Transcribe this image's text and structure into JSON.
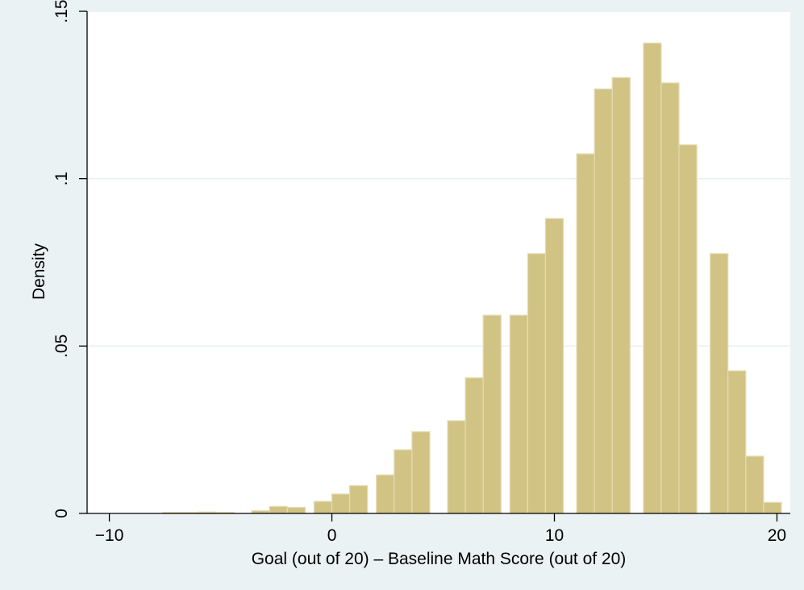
{
  "chart_data": {
    "type": "bar",
    "xlabel": "Goal (out of 20) – Baseline Math Score (out of 20)",
    "ylabel": "Density",
    "xlim": [
      -11,
      20.6
    ],
    "ylim": [
      0,
      0.15
    ],
    "x_ticks": [
      {
        "value": -10,
        "label": "−10"
      },
      {
        "value": 0,
        "label": "0"
      },
      {
        "value": 10,
        "label": "10"
      },
      {
        "value": 20,
        "label": "20"
      }
    ],
    "y_ticks": [
      {
        "value": 0,
        "label": "0"
      },
      {
        "value": 0.05,
        "label": ".05"
      },
      {
        "value": 0.1,
        "label": ".1"
      },
      {
        "value": 0.15,
        "label": ".15"
      }
    ],
    "grid": true,
    "bin_width": 0.8,
    "bars": [
      {
        "x": -7.6,
        "value": 0.0003
      },
      {
        "x": -6.8,
        "value": 0.0003
      },
      {
        "x": -6.0,
        "value": 0.0004
      },
      {
        "x": -5.2,
        "value": 0.0003
      },
      {
        "x": -3.6,
        "value": 0.0008
      },
      {
        "x": -2.8,
        "value": 0.0021
      },
      {
        "x": -2.0,
        "value": 0.0018
      },
      {
        "x": -0.8,
        "value": 0.0036
      },
      {
        "x": 0.0,
        "value": 0.0058
      },
      {
        "x": 0.8,
        "value": 0.0083
      },
      {
        "x": 2.0,
        "value": 0.0115
      },
      {
        "x": 2.8,
        "value": 0.019
      },
      {
        "x": 3.6,
        "value": 0.0244
      },
      {
        "x": 5.2,
        "value": 0.0277
      },
      {
        "x": 6.0,
        "value": 0.0405
      },
      {
        "x": 6.8,
        "value": 0.0592
      },
      {
        "x": 8.0,
        "value": 0.0592
      },
      {
        "x": 8.8,
        "value": 0.0776
      },
      {
        "x": 9.6,
        "value": 0.0881
      },
      {
        "x": 11.0,
        "value": 0.1074
      },
      {
        "x": 11.8,
        "value": 0.1268
      },
      {
        "x": 12.6,
        "value": 0.1302
      },
      {
        "x": 14.0,
        "value": 0.1405
      },
      {
        "x": 14.8,
        "value": 0.1286
      },
      {
        "x": 15.6,
        "value": 0.1101
      },
      {
        "x": 17.0,
        "value": 0.0776
      },
      {
        "x": 17.8,
        "value": 0.0426
      },
      {
        "x": 18.6,
        "value": 0.0171
      },
      {
        "x": 19.4,
        "value": 0.0033
      }
    ],
    "colors": {
      "background": "#eaf2f3",
      "plot_area": "#ffffff",
      "bar_fill": "#d1c384",
      "bar_stroke": "#e4dcb4",
      "gridline": "#e9efef",
      "axis": "#000000"
    }
  }
}
